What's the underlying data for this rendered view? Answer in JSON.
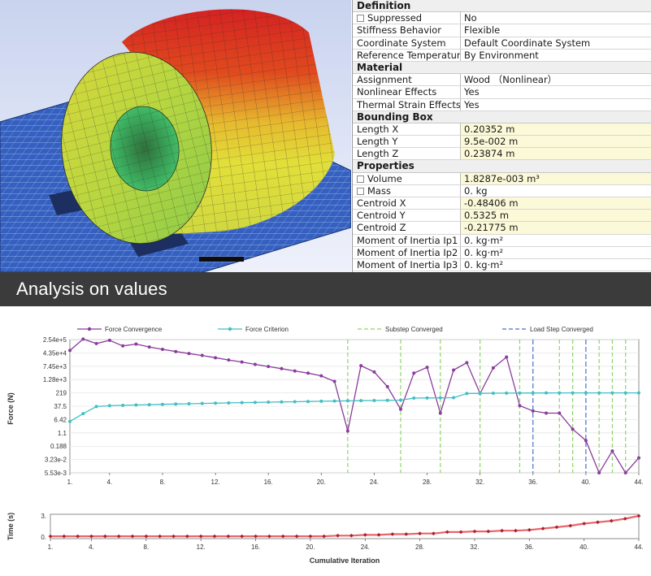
{
  "details": {
    "sections": [
      {
        "title": "Definition",
        "rows": [
          {
            "key": "Suppressed",
            "value": "No",
            "checkbox": true
          },
          {
            "key": "Stiffness Behavior",
            "value": "Flexible"
          },
          {
            "key": "Coordinate System",
            "value": "Default Coordinate System"
          },
          {
            "key": "Reference Temperature",
            "value": "By Environment"
          }
        ]
      },
      {
        "title": "Material",
        "rows": [
          {
            "key": "Assignment",
            "value": "Wood （Nonlinear）"
          },
          {
            "key": "Nonlinear Effects",
            "value": "Yes"
          },
          {
            "key": "Thermal Strain Effects",
            "value": "Yes"
          }
        ]
      },
      {
        "title": "Bounding Box",
        "rows": [
          {
            "key": "Length X",
            "value": "0.20352 m",
            "highlight": true
          },
          {
            "key": "Length Y",
            "value": "9.5e-002 m",
            "highlight": true
          },
          {
            "key": "Length Z",
            "value": "0.23874 m",
            "highlight": true
          }
        ]
      },
      {
        "title": "Properties",
        "rows": [
          {
            "key": "Volume",
            "value": "1.8287e-003 m³",
            "checkbox": true,
            "highlight": true
          },
          {
            "key": "Mass",
            "value": "0. kg",
            "checkbox": true
          },
          {
            "key": "Centroid X",
            "value": "-0.48406 m",
            "highlight": true
          },
          {
            "key": "Centroid Y",
            "value": "0.5325 m",
            "highlight": true
          },
          {
            "key": "Centroid Z",
            "value": "-0.21775 m",
            "highlight": true
          },
          {
            "key": "Moment of Inertia Ip1",
            "value": "0. kg·m²"
          },
          {
            "key": "Moment of Inertia Ip2",
            "value": "0. kg·m²"
          },
          {
            "key": "Moment of Inertia Ip3",
            "value": "0. kg·m²"
          }
        ]
      }
    ]
  },
  "banner": {
    "title": "Analysis on values"
  },
  "colors": {
    "force_convergence": "#8a3c9c",
    "force_criterion": "#41bfc4",
    "substep": "#8fd46a",
    "load_step": "#4a6fc8",
    "time_line": "#e7656f",
    "time_markers": "#b0202a",
    "bell_hot": "#d82020",
    "bell_mid": "#e8d030",
    "bell_cool": "#3cc060",
    "ground_mesh": "#2f57b8"
  },
  "chart_data": [
    {
      "type": "line",
      "ylabel": "Force (N)",
      "y_scale": "log",
      "y_tick_labels": [
        "2.54e+5",
        "4.35e+4",
        "7.45e+3",
        "1.28e+3",
        "219",
        "37.5",
        "6.42",
        "1.1",
        "0.188",
        "3.23e-2",
        "5.53e-3"
      ],
      "y_tick_values": [
        254000,
        43500,
        7450,
        1280,
        219,
        37.5,
        6.42,
        1.1,
        0.188,
        0.0323,
        0.00553
      ],
      "x_tick_labels": [
        "1.",
        "4.",
        "8.",
        "12.",
        "16.",
        "20.",
        "24.",
        "28.",
        "32.",
        "36.",
        "40.",
        "44."
      ],
      "x_tick_values": [
        1,
        4,
        8,
        12,
        16,
        20,
        24,
        28,
        32,
        36,
        40,
        44
      ],
      "xlim": [
        1,
        44
      ],
      "legend": [
        {
          "name": "Force Convergence",
          "style": "line-marker"
        },
        {
          "name": "Force Criterion",
          "style": "line-marker"
        },
        {
          "name": "Substep Converged",
          "style": "dashed"
        },
        {
          "name": "Load Step Converged",
          "style": "dashed"
        }
      ],
      "legend_position": "top",
      "series": [
        {
          "name": "Force Convergence",
          "x": [
            1,
            2,
            3,
            4,
            5,
            6,
            7,
            8,
            9,
            10,
            11,
            12,
            13,
            14,
            15,
            16,
            17,
            18,
            19,
            20,
            21,
            22,
            23,
            24,
            25,
            26,
            27,
            28,
            29,
            30,
            31,
            32,
            33,
            34,
            35,
            36,
            37,
            38,
            39,
            40,
            41,
            42,
            43,
            44
          ],
          "y": [
            60000,
            270000,
            150000,
            230000,
            110000,
            140000,
            95000,
            70000,
            52000,
            40000,
            31000,
            23000,
            17000,
            13000,
            9500,
            7200,
            5400,
            4000,
            3000,
            2100,
            1000,
            1.4,
            8000,
            3500,
            500,
            25,
            3000,
            6500,
            15,
            4500,
            12000,
            200,
            6000,
            25000,
            40,
            20,
            15,
            15,
            1.8,
            0.4,
            0.0055,
            0.1,
            0.0055,
            0.04
          ]
        },
        {
          "name": "Force Criterion",
          "x": [
            1,
            2,
            3,
            4,
            5,
            6,
            7,
            8,
            9,
            10,
            11,
            12,
            13,
            14,
            15,
            16,
            17,
            18,
            19,
            20,
            21,
            22,
            23,
            24,
            25,
            26,
            27,
            28,
            29,
            30,
            31,
            32,
            33,
            34,
            35,
            36,
            37,
            38,
            39,
            40,
            41,
            42,
            43,
            44
          ],
          "y": [
            5,
            14,
            36,
            40,
            42,
            44,
            46,
            48,
            50,
            52,
            54,
            56,
            58,
            60,
            62,
            64,
            66,
            68,
            70,
            72,
            74,
            76,
            78,
            80,
            82,
            84,
            110,
            112,
            114,
            116,
            200,
            205,
            210,
            212,
            215,
            216,
            217,
            218,
            219,
            219,
            219,
            219,
            219,
            219
          ]
        }
      ],
      "substep_converged_x": [
        22,
        26,
        29,
        32,
        35,
        38,
        39,
        41,
        42,
        43
      ],
      "load_step_converged_x": [
        36,
        40
      ]
    },
    {
      "type": "line",
      "xlabel": "Cumulative Iteration",
      "ylabel": "Time (s)",
      "y_tick_labels": [
        "3.",
        "0."
      ],
      "ylim": [
        0,
        3
      ],
      "x_tick_labels": [
        "1.",
        "4.",
        "8.",
        "12.",
        "16.",
        "20.",
        "24.",
        "28.",
        "32.",
        "36.",
        "40.",
        "44."
      ],
      "x_tick_values": [
        1,
        4,
        8,
        12,
        16,
        20,
        24,
        28,
        32,
        36,
        40,
        44
      ],
      "xlim": [
        1,
        44
      ],
      "series": [
        {
          "x": [
            1,
            2,
            3,
            4,
            5,
            6,
            7,
            8,
            9,
            10,
            11,
            12,
            13,
            14,
            15,
            16,
            17,
            18,
            19,
            20,
            21,
            22,
            23,
            24,
            25,
            26,
            27,
            28,
            29,
            30,
            31,
            32,
            33,
            34,
            35,
            36,
            37,
            38,
            39,
            40,
            41,
            42,
            43,
            44
          ],
          "y": [
            0.1,
            0.1,
            0.1,
            0.1,
            0.1,
            0.1,
            0.1,
            0.1,
            0.1,
            0.1,
            0.1,
            0.1,
            0.1,
            0.1,
            0.1,
            0.1,
            0.1,
            0.1,
            0.1,
            0.1,
            0.1,
            0.2,
            0.2,
            0.3,
            0.3,
            0.4,
            0.4,
            0.5,
            0.5,
            0.7,
            0.7,
            0.8,
            0.8,
            0.9,
            0.9,
            1.0,
            1.2,
            1.4,
            1.6,
            1.9,
            2.1,
            2.3,
            2.6,
            3.0
          ]
        }
      ]
    }
  ]
}
